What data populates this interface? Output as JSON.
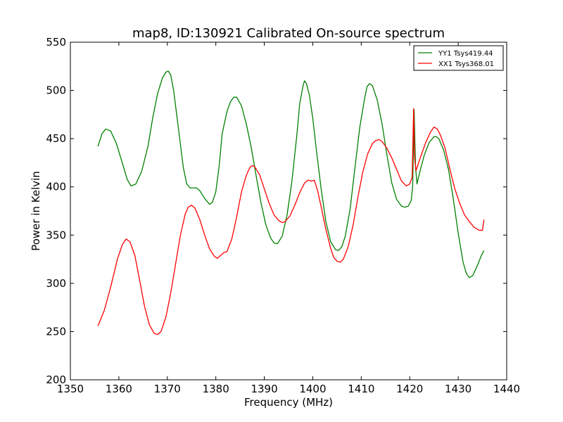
{
  "chart_data": {
    "type": "line",
    "title": "map8, ID:130921 Calibrated On-source spectrum",
    "xlabel": "Frequency (MHz)",
    "ylabel": "Power in Kelvin",
    "xlim": [
      1350,
      1440
    ],
    "ylim": [
      200,
      550
    ],
    "xticks": [
      1350,
      1360,
      1370,
      1380,
      1390,
      1400,
      1410,
      1420,
      1430,
      1440
    ],
    "yticks": [
      200,
      250,
      300,
      350,
      400,
      450,
      500,
      550
    ],
    "xtick_labels": [
      "1350",
      "1360",
      "1370",
      "1380",
      "1390",
      "1400",
      "1410",
      "1420",
      "1430",
      "1440"
    ],
    "ytick_labels": [
      "200",
      "250",
      "300",
      "350",
      "400",
      "450",
      "500",
      "550"
    ],
    "grid": false,
    "legend_position": "top-right",
    "series": [
      {
        "name": "YY1 Tsys419.44",
        "color": "#008000",
        "x": [
          1355.7,
          1356.5,
          1357.3,
          1358.3,
          1359.5,
          1360.7,
          1361.7,
          1362.5,
          1363.5,
          1364.7,
          1366.0,
          1367.0,
          1368.0,
          1369.0,
          1369.7,
          1370.2,
          1370.7,
          1371.3,
          1372.3,
          1373.3,
          1374.0,
          1374.7,
          1376.0,
          1376.7,
          1377.7,
          1378.7,
          1379.3,
          1380.0,
          1380.7,
          1381.3,
          1382.3,
          1383.0,
          1383.7,
          1384.3,
          1385.3,
          1386.3,
          1387.3,
          1388.3,
          1389.3,
          1390.3,
          1391.3,
          1392.0,
          1392.7,
          1393.7,
          1394.7,
          1395.7,
          1396.7,
          1397.3,
          1398.0,
          1398.3,
          1398.7,
          1399.3,
          1400.0,
          1400.7,
          1401.7,
          1402.7,
          1403.7,
          1404.7,
          1405.3,
          1406.0,
          1406.7,
          1407.7,
          1408.7,
          1409.7,
          1410.7,
          1411.2,
          1411.7,
          1412.3,
          1413.3,
          1414.3,
          1415.3,
          1416.3,
          1417.3,
          1418.3,
          1419.0,
          1419.7,
          1420.3,
          1420.6,
          1420.9,
          1421.2,
          1421.5,
          1422.0,
          1423.0,
          1424.0,
          1425.0,
          1425.5,
          1426.0,
          1427.0,
          1428.0,
          1429.0,
          1430.0,
          1431.0,
          1431.7,
          1432.3,
          1433.0,
          1434.0,
          1434.7,
          1435.3
        ],
        "values": [
          442,
          455,
          460,
          458,
          445,
          425,
          408,
          401,
          403,
          416,
          442,
          472,
          497,
          513,
          519,
          520,
          516,
          500,
          460,
          420,
          403,
          399,
          399,
          396,
          388,
          382,
          384,
          395,
          422,
          455,
          478,
          488,
          493,
          493,
          484,
          465,
          441,
          412,
          384,
          361,
          347,
          342,
          341,
          349,
          371,
          406,
          453,
          486,
          505,
          510,
          507,
          495,
          471,
          440,
          399,
          364,
          343,
          335,
          334,
          338,
          349,
          377,
          420,
          462,
          492,
          504,
          507,
          505,
          490,
          465,
          433,
          404,
          387,
          380,
          379,
          380,
          386,
          400,
          480,
          420,
          403,
          414,
          433,
          446,
          452,
          452,
          450,
          438,
          418,
          387,
          352,
          322,
          310,
          306,
          308,
          319,
          328,
          334
        ]
      },
      {
        "name": "XX1 Tsys368.01",
        "color": "#ff0000",
        "x": [
          1355.7,
          1357.0,
          1358.3,
          1359.7,
          1360.7,
          1361.5,
          1362.3,
          1363.3,
          1364.3,
          1365.3,
          1366.3,
          1367.3,
          1368.0,
          1368.7,
          1369.7,
          1370.7,
          1371.7,
          1372.7,
          1373.7,
          1374.3,
          1375.0,
          1375.7,
          1376.7,
          1377.7,
          1378.7,
          1379.7,
          1380.3,
          1381.0,
          1381.7,
          1382.3,
          1383.3,
          1384.3,
          1385.3,
          1386.3,
          1387.0,
          1387.5,
          1388.0,
          1389.0,
          1390.0,
          1391.0,
          1392.0,
          1393.0,
          1393.7,
          1394.3,
          1395.3,
          1396.3,
          1397.3,
          1398.3,
          1399.0,
          1399.7,
          1400.3,
          1401.0,
          1401.7,
          1402.7,
          1403.7,
          1404.3,
          1405.0,
          1405.7,
          1406.3,
          1407.3,
          1408.3,
          1409.3,
          1410.3,
          1411.3,
          1412.3,
          1413.0,
          1413.7,
          1414.3,
          1415.3,
          1416.3,
          1417.3,
          1418.3,
          1419.3,
          1420.0,
          1420.5,
          1420.8,
          1421.0,
          1421.3,
          1422.3,
          1423.3,
          1424.3,
          1425.0,
          1425.7,
          1426.3,
          1427.3,
          1428.3,
          1429.3,
          1430.3,
          1431.3,
          1432.3,
          1433.3,
          1434.3,
          1435.0,
          1435.3
        ],
        "values": [
          256,
          272,
          296,
          325,
          340,
          346,
          343,
          329,
          303,
          276,
          257,
          248,
          247,
          250,
          265,
          290,
          320,
          350,
          372,
          379,
          381,
          378,
          366,
          350,
          336,
          328,
          326,
          329,
          332,
          333,
          346,
          369,
          395,
          412,
          420,
          422,
          421,
          413,
          398,
          383,
          371,
          365,
          363,
          364,
          370,
          381,
          394,
          404,
          407,
          406,
          407,
          396,
          380,
          356,
          336,
          327,
          323,
          322,
          325,
          338,
          360,
          389,
          415,
          434,
          445,
          448,
          449,
          447,
          440,
          430,
          418,
          406,
          401,
          403,
          410,
          481,
          430,
          417,
          432,
          446,
          457,
          462,
          460,
          454,
          440,
          418,
          398,
          383,
          371,
          364,
          358,
          355,
          355,
          366
        ]
      }
    ]
  }
}
